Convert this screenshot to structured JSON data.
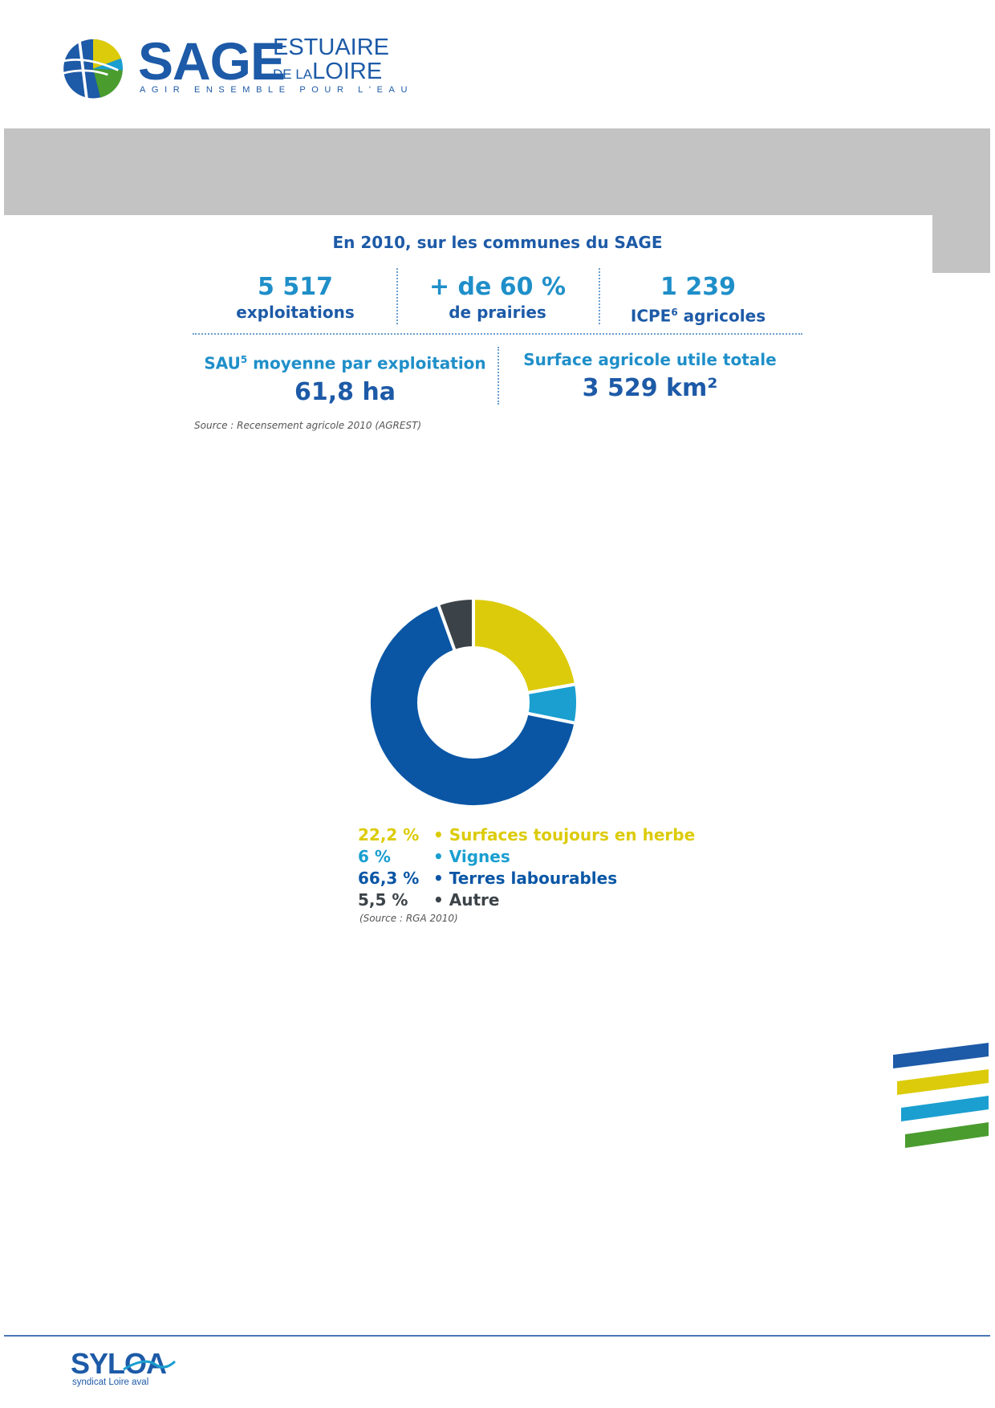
{
  "header": {
    "logo_main": "SAGE",
    "logo_line1": "ESTUAIRE",
    "logo_line2_small": "DE LA",
    "logo_line2_big": "LOIRE",
    "tagline": "AGIR ENSEMBLE POUR L'EAU"
  },
  "stats": {
    "title": "En 2010, sur les communes du SAGE",
    "items": [
      {
        "value": "5 517",
        "label": "exploitations"
      },
      {
        "value": "+ de 60 %",
        "label": "de prairies"
      },
      {
        "value": "1 239",
        "label_pre": "ICPE",
        "label_sup": "6",
        "label_post": " agricoles"
      }
    ],
    "sau": {
      "label_pre": "SAU",
      "label_sup": "5",
      "label_post": " moyenne par exploitation",
      "value": "61,8 ha"
    },
    "surface": {
      "label": "Surface agricole utile totale",
      "value": "3 529 km²"
    },
    "source": "Source : Recensement agricole 2010 (AGREST)"
  },
  "chart_data": {
    "type": "pie",
    "donut": true,
    "categories": [
      "Surfaces toujours en herbe",
      "Vignes",
      "Terres labourables",
      "Autre"
    ],
    "values": [
      22.2,
      6,
      66.3,
      5.5
    ],
    "value_labels": [
      "22,2 %",
      "6 %",
      "66,3 %",
      "5,5 %"
    ],
    "colors": [
      "#dccb0a",
      "#1a9fd0",
      "#0a56a5",
      "#3c4348"
    ],
    "legend_placement": "bottom",
    "source": "(Source : RGA 2010)"
  },
  "footer": {
    "brand": "SYLOA",
    "subtitle": "syndicat Loire aval"
  }
}
